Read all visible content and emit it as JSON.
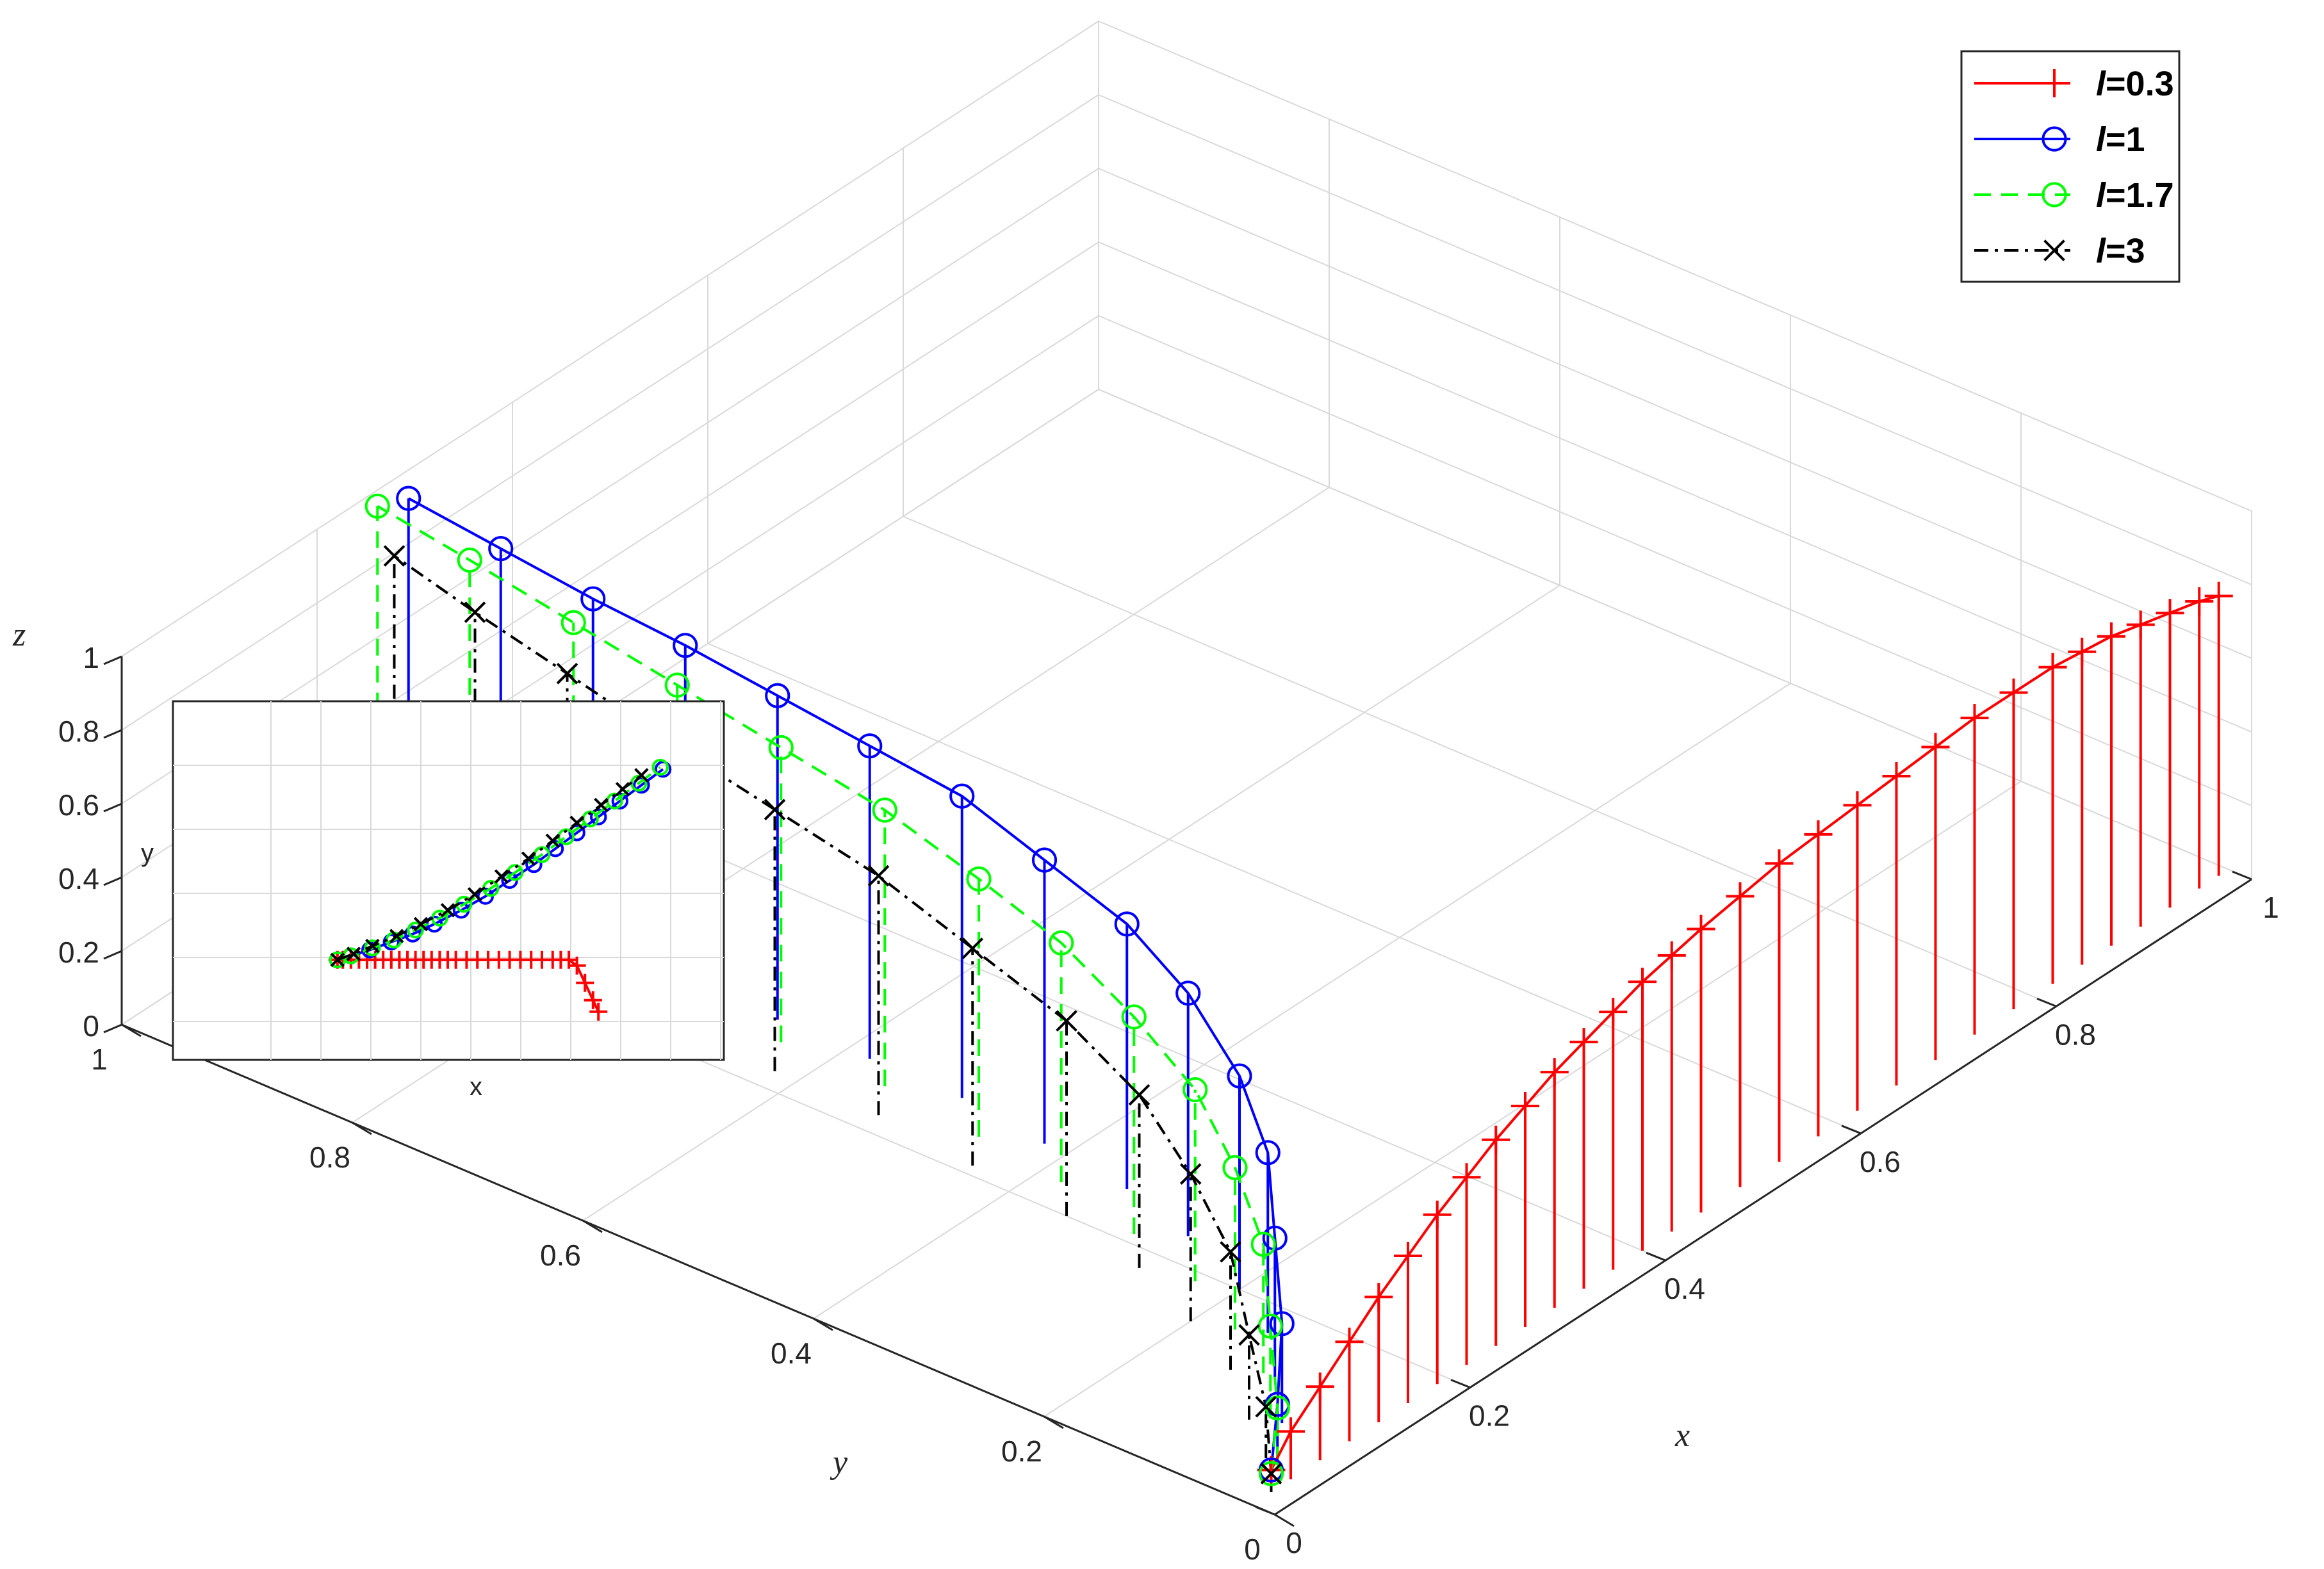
{
  "chart_data": [
    {
      "type": "line",
      "title": "",
      "kind": "3d-stem-trajectory",
      "xlabel": "x",
      "ylabel": "y",
      "zlabel": "z",
      "xlim": [
        0,
        1
      ],
      "ylim": [
        0,
        1
      ],
      "zlim": [
        0,
        1
      ],
      "xticks": [
        "0",
        "0.2",
        "0.4",
        "0.6",
        "0.8",
        "1"
      ],
      "yticks": [
        "0",
        "0.2",
        "0.4",
        "0.6",
        "0.8",
        "1"
      ],
      "zticks": [
        "0",
        "0.2",
        "0.4",
        "0.6",
        "0.8",
        "1"
      ],
      "grid": true,
      "legend_position": "top-right",
      "series": [
        {
          "name": "l=0.3",
          "name_var": "l",
          "name_val": "=0.3",
          "color": "#ff0000",
          "line_style": "solid",
          "marker": "plus",
          "points": [
            [
              0.02,
              0.02,
              0.06
            ],
            [
              0.04,
              0.02,
              0.13
            ],
            [
              0.07,
              0.02,
              0.2
            ],
            [
              0.1,
              0.02,
              0.27
            ],
            [
              0.13,
              0.02,
              0.34
            ],
            [
              0.16,
              0.02,
              0.4
            ],
            [
              0.19,
              0.02,
              0.46
            ],
            [
              0.22,
              0.02,
              0.51
            ],
            [
              0.25,
              0.02,
              0.56
            ],
            [
              0.28,
              0.02,
              0.6
            ],
            [
              0.31,
              0.02,
              0.64
            ],
            [
              0.34,
              0.02,
              0.67
            ],
            [
              0.37,
              0.02,
              0.7
            ],
            [
              0.4,
              0.02,
              0.73
            ],
            [
              0.43,
              0.02,
              0.75
            ],
            [
              0.46,
              0.02,
              0.77
            ],
            [
              0.5,
              0.02,
              0.79
            ],
            [
              0.54,
              0.02,
              0.81
            ],
            [
              0.58,
              0.02,
              0.82
            ],
            [
              0.62,
              0.02,
              0.83
            ],
            [
              0.66,
              0.02,
              0.84
            ],
            [
              0.7,
              0.02,
              0.85
            ],
            [
              0.74,
              0.02,
              0.86
            ],
            [
              0.78,
              0.02,
              0.86
            ],
            [
              0.82,
              0.02,
              0.86
            ],
            [
              0.85,
              0.02,
              0.85
            ],
            [
              0.88,
              0.02,
              0.84
            ],
            [
              0.91,
              0.02,
              0.82
            ],
            [
              0.94,
              0.02,
              0.8
            ],
            [
              0.97,
              0.02,
              0.78
            ],
            [
              0.99,
              0.02,
              0.76
            ]
          ]
        },
        {
          "name": "l=1",
          "name_var": "l",
          "name_val": "=1",
          "color": "#0000ff",
          "line_style": "solid",
          "marker": "circle",
          "points": [
            [
              0.02,
              0.02,
              0.06
            ],
            [
              0.05,
              0.04,
              0.16
            ],
            [
              0.09,
              0.07,
              0.27
            ],
            [
              0.13,
              0.11,
              0.38
            ],
            [
              0.17,
              0.15,
              0.49
            ],
            [
              0.2,
              0.2,
              0.58
            ],
            [
              0.23,
              0.27,
              0.66
            ],
            [
              0.25,
              0.34,
              0.72
            ],
            [
              0.26,
              0.42,
              0.77
            ],
            [
              0.27,
              0.5,
              0.82
            ],
            [
              0.27,
              0.58,
              0.85
            ],
            [
              0.27,
              0.66,
              0.88
            ],
            [
              0.27,
              0.74,
              0.91
            ],
            [
              0.27,
              0.82,
              0.93
            ],
            [
              0.27,
              0.9,
              0.96
            ],
            [
              0.27,
              0.98,
              0.99
            ]
          ]
        },
        {
          "name": "l=1.7",
          "name_var": "l",
          "name_val": "=1.7",
          "color": "#00ff00",
          "line_style": "dashed",
          "marker": "circle",
          "points": [
            [
              0.02,
              0.02,
              0.05
            ],
            [
              0.05,
              0.04,
              0.15
            ],
            [
              0.09,
              0.08,
              0.25
            ],
            [
              0.13,
              0.12,
              0.35
            ],
            [
              0.16,
              0.17,
              0.44
            ],
            [
              0.19,
              0.23,
              0.52
            ],
            [
              0.21,
              0.3,
              0.59
            ],
            [
              0.23,
              0.38,
              0.65
            ],
            [
              0.24,
              0.46,
              0.7
            ],
            [
              0.25,
              0.55,
              0.75
            ],
            [
              0.25,
              0.64,
              0.8
            ],
            [
              0.25,
              0.73,
              0.85
            ],
            [
              0.25,
              0.82,
              0.9
            ],
            [
              0.25,
              0.91,
              0.95
            ],
            [
              0.25,
              0.99,
              0.99
            ]
          ]
        },
        {
          "name": "l=3",
          "name_var": "l",
          "name_val": "=3",
          "color": "#000000",
          "line_style": "dashdot",
          "marker": "cross",
          "points": [
            [
              0.02,
              0.02,
              0.05
            ],
            [
              0.05,
              0.05,
              0.14
            ],
            [
              0.08,
              0.09,
              0.23
            ],
            [
              0.12,
              0.14,
              0.32
            ],
            [
              0.15,
              0.2,
              0.4
            ],
            [
              0.18,
              0.27,
              0.47
            ],
            [
              0.2,
              0.35,
              0.53
            ],
            [
              0.21,
              0.44,
              0.59
            ],
            [
              0.22,
              0.53,
              0.65
            ],
            [
              0.22,
              0.62,
              0.71
            ],
            [
              0.22,
              0.71,
              0.77
            ],
            [
              0.22,
              0.8,
              0.84
            ],
            [
              0.22,
              0.88,
              0.9
            ],
            [
              0.22,
              0.95,
              0.96
            ]
          ]
        }
      ]
    },
    {
      "type": "line",
      "title": "",
      "kind": "inset-xy-projection",
      "xlabel": "x",
      "ylabel": "y",
      "grid": true,
      "series_ref": [
        "l=0.3",
        "l=1",
        "l=1.7",
        "l=3"
      ]
    }
  ]
}
